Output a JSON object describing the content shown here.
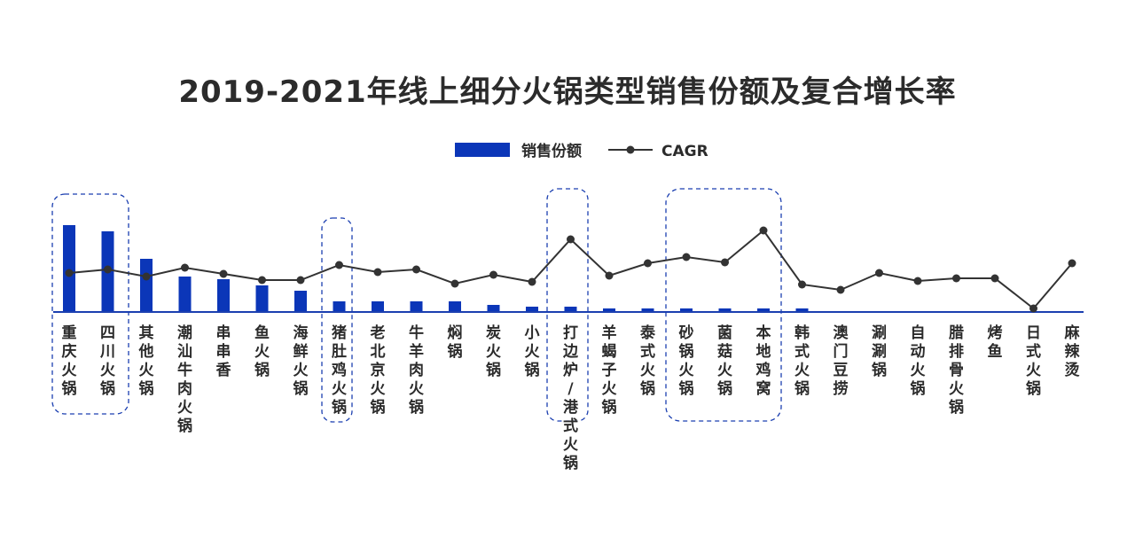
{
  "chart_data": {
    "type": "bar+line",
    "title": "2019-2021年线上细分火锅类型销售份额及复合增长率",
    "legend": [
      {
        "name": "销售份额",
        "marker": "bar",
        "color": "#0b36b8"
      },
      {
        "name": "CAGR",
        "marker": "line-dot",
        "color": "#333333"
      }
    ],
    "legend_position": "top-center",
    "grid": false,
    "categories": [
      "重庆火锅",
      "四川火锅",
      "其他火锅",
      "潮汕牛肉火锅",
      "串串香",
      "鱼火锅",
      "海鲜火锅",
      "猪肚鸡火锅",
      "老北京火锅",
      "牛羊肉火锅",
      "焖锅",
      "炭火锅",
      "小火锅",
      "打边炉/港式火锅",
      "羊蝎子火锅",
      "泰式火锅",
      "砂锅火锅",
      "菌菇火锅",
      "本地鸡窝",
      "韩式火锅",
      "澳门豆捞",
      "涮涮锅",
      "自动火锅",
      "腊排骨火锅",
      "烤鱼",
      "日式火锅",
      "麻辣烫"
    ],
    "series": [
      {
        "name": "销售份额",
        "type": "bar",
        "values": [
          98,
          91,
          60,
          40,
          37,
          30,
          24,
          12,
          12,
          12,
          12,
          8,
          6,
          6,
          4,
          4,
          4,
          4,
          4,
          4,
          0,
          0,
          0,
          0,
          0,
          0,
          0
        ]
      },
      {
        "name": "CAGR",
        "type": "line",
        "values": [
          44,
          48,
          40,
          50,
          43,
          36,
          36,
          53,
          45,
          48,
          32,
          42,
          34,
          82,
          41,
          55,
          62,
          56,
          92,
          31,
          25,
          44,
          35,
          38,
          38,
          4,
          55
        ]
      }
    ],
    "highlight_groups": [
      {
        "members": [
          "重庆火锅",
          "四川火锅"
        ]
      },
      {
        "members": [
          "猪肚鸡火锅"
        ]
      },
      {
        "members": [
          "打边炉/港式火锅"
        ]
      },
      {
        "members": [
          "砂锅火锅",
          "菌菇火锅",
          "本地鸡窝"
        ]
      }
    ],
    "colors": {
      "bar": "#0b36b8",
      "line": "#333333",
      "axis": "#1b3fb0",
      "highlight_border": "#1b3fb0"
    }
  }
}
